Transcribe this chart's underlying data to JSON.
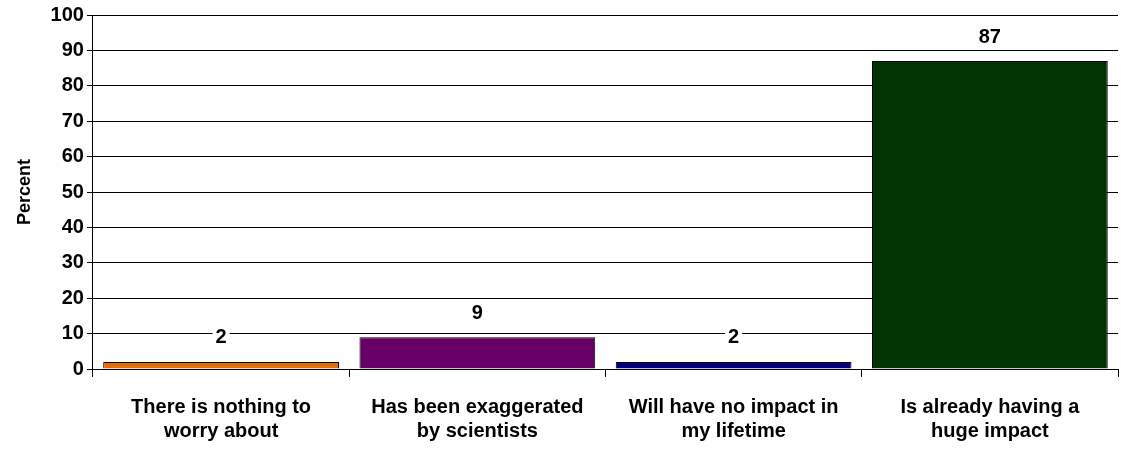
{
  "chart_data": {
    "type": "bar",
    "ylabel": "Percent",
    "categories": [
      "There is nothing to worry about",
      "Has been exaggerated by scientists",
      "Will have no impact in my lifetime",
      "Is already having a huge impact"
    ],
    "values": [
      2,
      9,
      2,
      87
    ],
    "colors": [
      "#e46c0a",
      "#660066",
      "#000080",
      "#003300"
    ],
    "ylim": [
      0,
      100
    ],
    "yticks": [
      0,
      10,
      20,
      30,
      40,
      50,
      60,
      70,
      80,
      90,
      100
    ],
    "grid": "y",
    "data_labels": true
  }
}
